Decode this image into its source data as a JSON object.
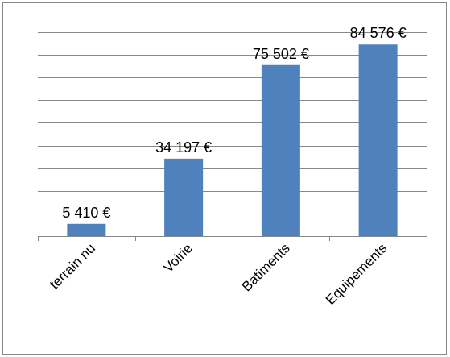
{
  "chart_data": {
    "type": "bar",
    "categories": [
      "terrain nu",
      "Voirie",
      "Batiments",
      "Equipements"
    ],
    "values": [
      5410,
      34197,
      75502,
      84576
    ],
    "value_labels": [
      "5 410 €",
      "34 197 €",
      "75 502 €",
      "84 576 €"
    ],
    "color": "#4f81bd",
    "ylim": [
      0,
      90000
    ],
    "yticks": [
      0,
      10000,
      20000,
      30000,
      40000,
      50000,
      60000,
      70000,
      80000,
      90000
    ],
    "grid": true
  }
}
